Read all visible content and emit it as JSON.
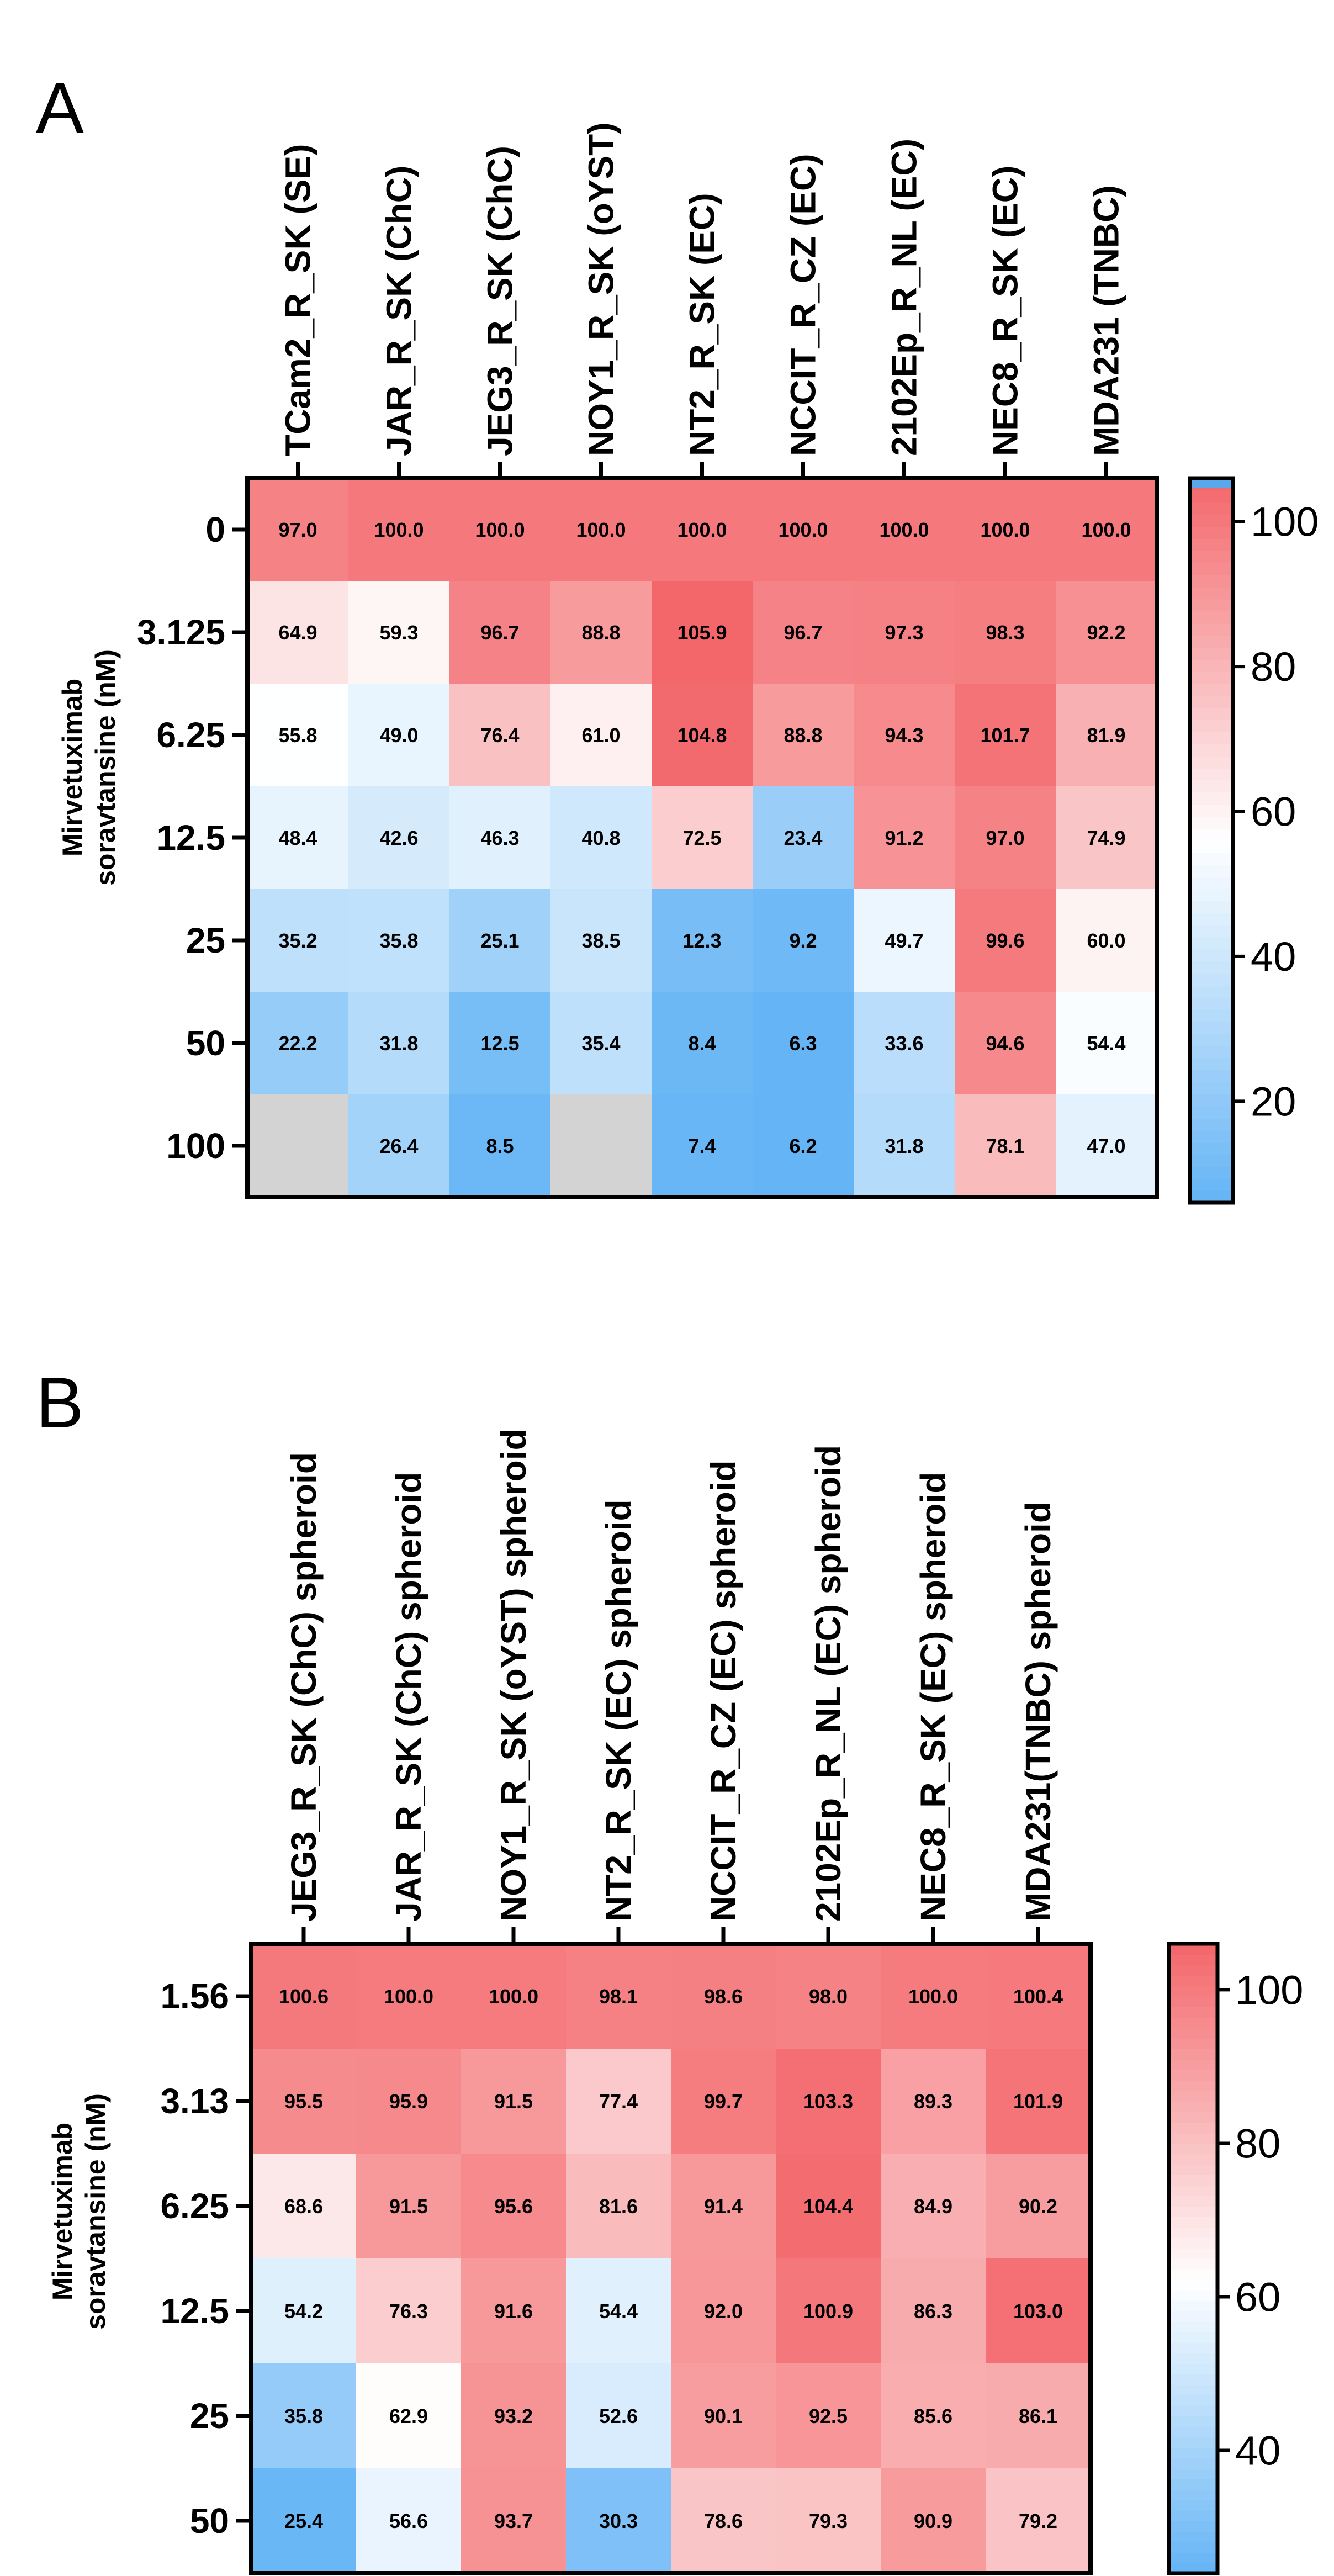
{
  "chart_data": [
    {
      "type": "heatmap",
      "panel_label": "A",
      "xlabel": "",
      "ylabel": [
        "Mirvetuximab",
        "soravtansine (nM)"
      ],
      "columns": [
        "TCam2_R_SK (SE)",
        "JAR_R_SK (ChC)",
        "JEG3_R_SK (ChC)",
        "NOY1_R_SK (oYST)",
        "NT2_R_SK (EC)",
        "NCCIT_R_CZ (EC)",
        "2102Ep_R_NL (EC)",
        "NEC8_R_SK (EC)",
        "MDA231 (TNBC)"
      ],
      "rows": [
        "0",
        "3.125",
        "6.25",
        "12.5",
        "25",
        "50",
        "100"
      ],
      "values": [
        [
          97.0,
          100.0,
          100.0,
          100.0,
          100.0,
          100.0,
          100.0,
          100.0,
          100.0
        ],
        [
          64.9,
          59.3,
          96.7,
          88.8,
          105.9,
          96.7,
          97.3,
          98.3,
          92.2
        ],
        [
          55.8,
          49.0,
          76.4,
          61.0,
          104.8,
          88.8,
          94.3,
          101.7,
          81.9
        ],
        [
          48.4,
          42.6,
          46.3,
          40.8,
          72.5,
          23.4,
          91.2,
          97.0,
          74.9
        ],
        [
          35.2,
          35.8,
          25.1,
          38.5,
          12.3,
          9.2,
          49.7,
          99.6,
          60.0
        ],
        [
          22.2,
          31.8,
          12.5,
          35.4,
          8.4,
          6.3,
          33.6,
          94.6,
          54.4
        ],
        [
          null,
          26.4,
          8.5,
          null,
          7.4,
          6.2,
          31.8,
          78.1,
          47.0
        ]
      ],
      "colorbar": {
        "ticks": [
          20,
          40,
          60,
          80,
          100
        ],
        "range": [
          6,
          106
        ],
        "low_color": "#64b4f5",
        "mid_color": "#ffffff",
        "high_color": "#f3666a",
        "mid_value": 56,
        "overflow_color": "#5aa8ec"
      },
      "missing_color": "#d3d3d3"
    },
    {
      "type": "heatmap",
      "panel_label": "B",
      "xlabel": "",
      "ylabel": [
        "Mirvetuximab",
        "soravtansine (nM)"
      ],
      "columns": [
        "JEG3_R_SK (ChC) spheroid",
        "JAR_R_SK (ChC) spheroid",
        "NOY1_R_SK (oYST) spheroid",
        "NT2_R_SK (EC) spheroid",
        "NCCIT_R_CZ (EC) spheroid",
        "2102Ep_R_NL (EC) spheroid",
        "NEC8_R_SK (EC) spheroid",
        "MDA231(TNBC) spheroid"
      ],
      "rows": [
        "1.56",
        "3.13",
        "6.25",
        "12.5",
        "25",
        "50"
      ],
      "values": [
        [
          100.6,
          100.0,
          100.0,
          98.1,
          98.6,
          98.0,
          100.0,
          100.4
        ],
        [
          95.5,
          95.9,
          91.5,
          77.4,
          99.7,
          103.3,
          89.3,
          101.9
        ],
        [
          68.6,
          91.5,
          95.6,
          81.6,
          91.4,
          104.4,
          84.9,
          90.2
        ],
        [
          54.2,
          76.3,
          91.6,
          54.4,
          92.0,
          100.9,
          86.3,
          103.0
        ],
        [
          35.8,
          62.9,
          93.2,
          52.6,
          90.1,
          92.5,
          85.6,
          86.1
        ],
        [
          25.4,
          56.6,
          93.7,
          30.3,
          78.6,
          79.3,
          90.9,
          79.2
        ]
      ],
      "colorbar": {
        "ticks": [
          40,
          60,
          80,
          100
        ],
        "range": [
          24,
          106
        ],
        "low_color": "#64b4f5",
        "mid_color": "#ffffff",
        "high_color": "#f3666a",
        "mid_value": 62
      },
      "missing_color": "#d3d3d3"
    }
  ]
}
